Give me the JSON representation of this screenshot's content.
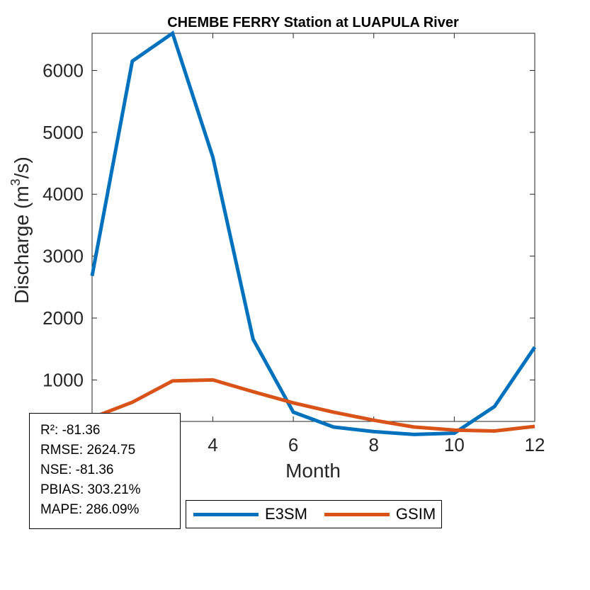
{
  "chart_data": {
    "type": "line",
    "title": "CHEMBE FERRY  Station at  LUAPULA  River",
    "xlabel": "Month",
    "ylabel": "Discharge (m",
    "ylabel_superscript": "3",
    "ylabel_suffix": "/s)",
    "xlim": [
      1,
      12
    ],
    "ylim": [
      330,
      6600
    ],
    "xticks": [
      4,
      6,
      8,
      10,
      12
    ],
    "yticks": [
      1000,
      2000,
      3000,
      4000,
      5000,
      6000
    ],
    "x": [
      1,
      2,
      3,
      4,
      5,
      6,
      7,
      8,
      9,
      10,
      11,
      12
    ],
    "series": [
      {
        "name": "E3SM",
        "color": "#0072BD",
        "values": [
          2680,
          6150,
          6600,
          4600,
          1660,
          480,
          240,
          165,
          120,
          140,
          570,
          1530
        ]
      },
      {
        "name": "GSIM",
        "color": "#D95319",
        "values": [
          390,
          640,
          985,
          1000,
          810,
          630,
          480,
          350,
          240,
          190,
          175,
          250
        ]
      }
    ],
    "legend": "bottom"
  },
  "stats": {
    "r2": "R²: -81.36",
    "rmse": "RMSE: 2624.75",
    "nse": "NSE: -81.36",
    "pbias": "PBIAS: 303.21%",
    "mape": "MAPE: 286.09%"
  }
}
